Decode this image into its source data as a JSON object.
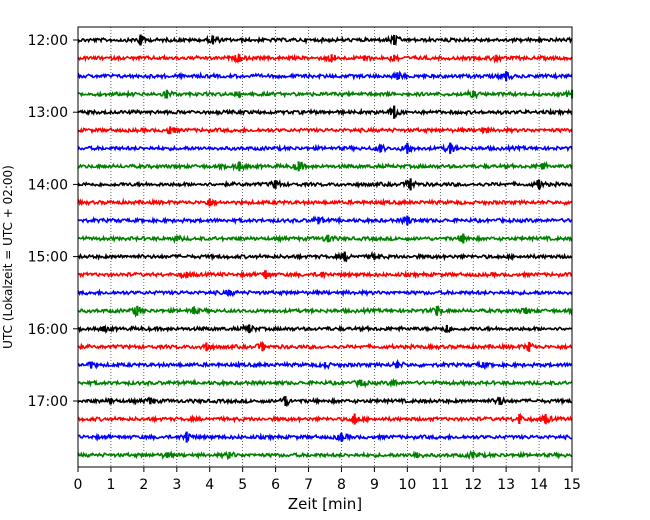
{
  "chart_data": {
    "type": "line",
    "title": "",
    "xlabel": "Zeit  [min]",
    "ylabel": "UTC (Lokalzeit = UTC + 02:00)",
    "xlim": [
      0,
      15
    ],
    "x_ticks": [
      "0",
      "1",
      "2",
      "3",
      "4",
      "5",
      "6",
      "7",
      "8",
      "9",
      "10",
      "11",
      "12",
      "13",
      "14",
      "15"
    ],
    "y_tick_labels": [
      "12:00",
      "13:00",
      "14:00",
      "15:00",
      "16:00",
      "17:00"
    ],
    "grid": "vertical dotted",
    "row_interval_minutes": 15,
    "row_color_cycle": [
      "#000000",
      "#ff0000",
      "#0000ff",
      "#008000"
    ],
    "series": [
      {
        "start": "12:00",
        "color": "#000000",
        "events": [
          [
            1.9,
            10
          ],
          [
            4.1,
            8
          ],
          [
            9.6,
            9
          ]
        ]
      },
      {
        "start": "12:15",
        "color": "#ff0000",
        "events": [
          [
            4.9,
            7
          ],
          [
            7.7,
            7
          ],
          [
            8.7,
            5
          ],
          [
            9.6,
            6
          ],
          [
            12.7,
            6
          ]
        ]
      },
      {
        "start": "12:30",
        "color": "#0000ff",
        "events": [
          [
            9.7,
            7
          ],
          [
            13.0,
            9
          ]
        ]
      },
      {
        "start": "12:45",
        "color": "#008000",
        "events": [
          [
            2.7,
            8
          ],
          [
            4.9,
            5
          ],
          [
            12.0,
            6
          ],
          [
            15.0,
            8
          ]
        ]
      },
      {
        "start": "13:00",
        "color": "#000000",
        "events": [
          [
            9.6,
            12
          ]
        ]
      },
      {
        "start": "13:15",
        "color": "#ff0000",
        "events": [
          [
            2.8,
            7
          ],
          [
            12.3,
            5
          ]
        ]
      },
      {
        "start": "13:30",
        "color": "#0000ff",
        "events": [
          [
            9.2,
            7
          ],
          [
            10.0,
            10
          ],
          [
            11.3,
            10
          ]
        ]
      },
      {
        "start": "13:45",
        "color": "#008000",
        "events": [
          [
            4.9,
            9
          ],
          [
            6.7,
            9
          ],
          [
            14.1,
            6
          ]
        ]
      },
      {
        "start": "14:00",
        "color": "#000000",
        "events": [
          [
            6.0,
            8
          ],
          [
            10.1,
            11
          ],
          [
            14.0,
            9
          ]
        ]
      },
      {
        "start": "14:15",
        "color": "#ff0000",
        "events": [
          [
            4.0,
            7
          ]
        ]
      },
      {
        "start": "14:30",
        "color": "#0000ff",
        "events": [
          [
            7.3,
            7
          ],
          [
            10.0,
            9
          ]
        ]
      },
      {
        "start": "14:45",
        "color": "#008000",
        "events": [
          [
            3.0,
            5
          ],
          [
            7.6,
            7
          ],
          [
            11.7,
            9
          ]
        ]
      },
      {
        "start": "15:00",
        "color": "#000000",
        "events": [
          [
            8.1,
            9
          ],
          [
            9.0,
            6
          ]
        ]
      },
      {
        "start": "15:15",
        "color": "#ff0000",
        "events": [
          [
            3.3,
            5
          ],
          [
            5.7,
            8
          ],
          [
            7.4,
            5
          ]
        ]
      },
      {
        "start": "15:30",
        "color": "#0000ff",
        "events": [
          [
            4.6,
            5
          ]
        ]
      },
      {
        "start": "15:45",
        "color": "#008000",
        "events": [
          [
            1.8,
            9
          ],
          [
            3.5,
            6
          ],
          [
            10.9,
            9
          ],
          [
            13.6,
            6
          ]
        ]
      },
      {
        "start": "16:00",
        "color": "#000000",
        "events": [
          [
            0.8,
            5
          ],
          [
            5.2,
            8
          ],
          [
            11.2,
            7
          ]
        ]
      },
      {
        "start": "16:15",
        "color": "#ff0000",
        "events": [
          [
            3.9,
            8
          ],
          [
            5.6,
            8
          ],
          [
            13.7,
            9
          ]
        ]
      },
      {
        "start": "16:30",
        "color": "#0000ff",
        "events": [
          [
            0.4,
            6
          ],
          [
            7.5,
            5
          ],
          [
            9.7,
            6
          ],
          [
            12.3,
            5
          ]
        ]
      },
      {
        "start": "16:45",
        "color": "#008000",
        "events": [
          [
            8.6,
            6
          ],
          [
            9.6,
            5
          ]
        ]
      },
      {
        "start": "17:00",
        "color": "#000000",
        "events": [
          [
            1.0,
            5
          ],
          [
            2.2,
            6
          ],
          [
            6.3,
            9
          ],
          [
            12.8,
            7
          ]
        ]
      },
      {
        "start": "17:15",
        "color": "#ff0000",
        "events": [
          [
            8.4,
            10
          ],
          [
            13.4,
            9
          ],
          [
            14.2,
            9
          ]
        ]
      },
      {
        "start": "17:30",
        "color": "#0000ff",
        "events": [
          [
            3.3,
            10
          ],
          [
            8.0,
            8
          ]
        ]
      },
      {
        "start": "17:45",
        "color": "#008000",
        "events": [
          [
            2.7,
            5
          ],
          [
            4.6,
            6
          ],
          [
            10.3,
            5
          ],
          [
            12.0,
            6
          ]
        ]
      }
    ]
  }
}
